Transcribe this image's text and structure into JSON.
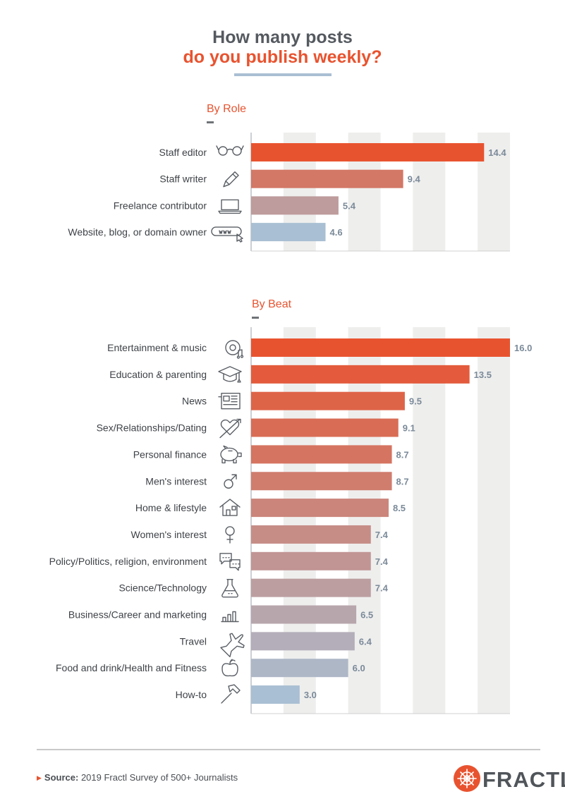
{
  "header": {
    "title_line1": "How many posts",
    "title_line2": "do you publish weekly?"
  },
  "sections": {
    "role_label": "By Role",
    "beat_label": "By Beat"
  },
  "chart_data": [
    {
      "type": "bar",
      "orientation": "horizontal",
      "title": "By Role",
      "categories": [
        "Staff editor",
        "Staff writer",
        "Freelance contributor",
        "Website, blog, or domain owner"
      ],
      "values": [
        14.4,
        9.4,
        5.4,
        4.6
      ],
      "value_labels": [
        "14.4",
        "9.4",
        "5.4",
        "4.6"
      ],
      "icons": [
        "glasses-icon",
        "pen-icon",
        "laptop-icon",
        "www-cursor-icon"
      ],
      "xlim": [
        0,
        16
      ],
      "grid": "alternating vertical bands"
    },
    {
      "type": "bar",
      "orientation": "horizontal",
      "title": "By Beat",
      "categories": [
        "Entertainment & music",
        "Education & parenting",
        "News",
        "Sex/Relationships/Dating",
        "Personal finance",
        "Men's interest",
        "Home & lifestyle",
        "Women's interest",
        "Policy/Politics, religion, environment",
        "Science/Technology",
        "Business/Career and marketing",
        "Travel",
        "Food and drink/Health and Fitness",
        "How-to"
      ],
      "values": [
        16.0,
        13.5,
        9.5,
        9.1,
        8.7,
        8.7,
        8.5,
        7.4,
        7.4,
        7.4,
        6.5,
        6.4,
        6.0,
        3.0
      ],
      "value_labels": [
        "16.0",
        "13.5",
        "9.5",
        "9.1",
        "8.7",
        "8.7",
        "8.5",
        "7.4",
        "7.4",
        "7.4",
        "6.5",
        "6.4",
        "6.0",
        "3.0"
      ],
      "icons": [
        "disc-music-icon",
        "graduation-cap-icon",
        "newspaper-icon",
        "heart-arrow-icon",
        "piggy-bank-icon",
        "male-symbol-icon",
        "house-icon",
        "female-symbol-icon",
        "speech-bubbles-icon",
        "flask-icon",
        "bar-chart-icon",
        "airplane-icon",
        "apple-icon",
        "hammer-icon"
      ],
      "xlim": [
        0,
        16
      ],
      "grid": "alternating vertical bands"
    }
  ],
  "colors": {
    "accent": "#e8532f",
    "bar_top": "#e8532f",
    "bar_bottom": "#a9bfd3",
    "band": "#eeeeed",
    "value_text": "#7b8a99"
  },
  "footer": {
    "source_label": "Source:",
    "source_text": "2019 Fractl Survey of 500+ Journalists",
    "logo_text": "FRACTL"
  }
}
